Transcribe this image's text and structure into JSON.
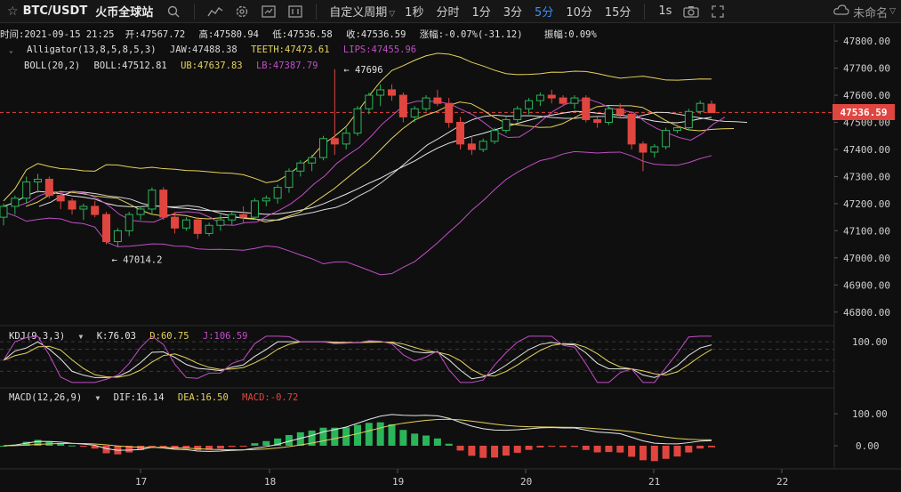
{
  "toolbar": {
    "symbol": "BTC/USDT",
    "exchange": "火币全球站",
    "custom_period": "自定义周期",
    "timeframes": [
      "1秒",
      "分时",
      "1分",
      "3分",
      "5分",
      "10分",
      "15分"
    ],
    "active_timeframe": "5分",
    "realtime": "1s",
    "user": "未命名",
    "icons": [
      "star-icon",
      "search-icon",
      "indicator-icon",
      "settings-icon",
      "fullscreen-icon",
      "camera-icon",
      "expand-icon",
      "cloud-icon"
    ]
  },
  "info_bar": {
    "time": "时间:2021-09-15 21:25",
    "open": "开:47567.72",
    "high": "高:47580.94",
    "low": "低:47536.58",
    "close": "收:47536.59",
    "change": "涨幅:-0.07%(-31.12)",
    "amplitude": "振幅:0.09%"
  },
  "alligator": {
    "label": "Alligator(13,8,5,8,5,3)",
    "jaw": "JAW:47488.38",
    "teeth": "TEETH:47473.61",
    "lips": "LIPS:47455.96"
  },
  "boll": {
    "label": "BOLL(20,2)",
    "mid": "BOLL:47512.81",
    "ub": "UB:47637.83",
    "lb": "LB:47387.79"
  },
  "kdj": {
    "label": "KDJ(9,3,3)",
    "k": "K:76.03",
    "d": "D:60.75",
    "j": "J:106.59"
  },
  "macd": {
    "label": "MACD(12,26,9)",
    "dif": "DIF:16.14",
    "dea": "DEA:16.50",
    "macd": "MACD:-0.72"
  },
  "current_price": "47536.59",
  "colors": {
    "up": "#2ab55a",
    "down": "#e0463f",
    "boll": "#e6d35a",
    "lips": "#c04ec7",
    "jaw": "#d9d9d9",
    "active": "#3d8ef5"
  },
  "chart_data": {
    "type": "candlestick",
    "price_axis_ticks": [
      "47800.00",
      "47700.00",
      "47600.00",
      "47500.00",
      "47400.00",
      "47300.00",
      "47200.00",
      "47100.00",
      "47000.00",
      "46900.00",
      "46800.00"
    ],
    "kdj_axis_ticks": [
      "100.00"
    ],
    "macd_axis_ticks": [
      "100.00",
      "0.00"
    ],
    "x_ticks": [
      "17",
      "18",
      "19",
      "20",
      "21",
      "22"
    ],
    "price_range": [
      46750,
      47820
    ],
    "annotations": {
      "high": "47696",
      "low": "47014.2"
    },
    "candles": [
      [
        47150,
        47200,
        47120,
        47190
      ],
      [
        47190,
        47230,
        47160,
        47220
      ],
      [
        47220,
        47300,
        47200,
        47280
      ],
      [
        47280,
        47310,
        47240,
        47290
      ],
      [
        47290,
        47300,
        47220,
        47230
      ],
      [
        47230,
        47240,
        47180,
        47210
      ],
      [
        47210,
        47220,
        47160,
        47180
      ],
      [
        47180,
        47200,
        47140,
        47190
      ],
      [
        47190,
        47210,
        47150,
        47160
      ],
      [
        47160,
        47170,
        47050,
        47060
      ],
      [
        47060,
        47110,
        47040,
        47100
      ],
      [
        47100,
        47170,
        47080,
        47160
      ],
      [
        47160,
        47190,
        47140,
        47180
      ],
      [
        47180,
        47260,
        47160,
        47250
      ],
      [
        47250,
        47260,
        47140,
        47150
      ],
      [
        47150,
        47170,
        47090,
        47110
      ],
      [
        47110,
        47150,
        47100,
        47140
      ],
      [
        47140,
        47150,
        47070,
        47090
      ],
      [
        47090,
        47130,
        47080,
        47120
      ],
      [
        47120,
        47160,
        47100,
        47140
      ],
      [
        47140,
        47170,
        47120,
        47160
      ],
      [
        47160,
        47190,
        47130,
        47150
      ],
      [
        47150,
        47220,
        47140,
        47210
      ],
      [
        47210,
        47230,
        47190,
        47220
      ],
      [
        47220,
        47270,
        47200,
        47260
      ],
      [
        47260,
        47330,
        47240,
        47320
      ],
      [
        47320,
        47360,
        47300,
        47350
      ],
      [
        47350,
        47380,
        47320,
        47370
      ],
      [
        47370,
        47450,
        47360,
        47440
      ],
      [
        47440,
        47696,
        47380,
        47420
      ],
      [
        47420,
        47480,
        47400,
        47460
      ],
      [
        47460,
        47560,
        47450,
        47550
      ],
      [
        47550,
        47610,
        47530,
        47600
      ],
      [
        47600,
        47640,
        47560,
        47620
      ],
      [
        47620,
        47640,
        47580,
        47600
      ],
      [
        47600,
        47610,
        47500,
        47520
      ],
      [
        47520,
        47560,
        47500,
        47550
      ],
      [
        47550,
        47600,
        47540,
        47590
      ],
      [
        47590,
        47620,
        47560,
        47570
      ],
      [
        47570,
        47590,
        47480,
        47500
      ],
      [
        47500,
        47520,
        47400,
        47420
      ],
      [
        47420,
        47450,
        47380,
        47400
      ],
      [
        47400,
        47440,
        47390,
        47430
      ],
      [
        47430,
        47480,
        47420,
        47470
      ],
      [
        47470,
        47520,
        47460,
        47510
      ],
      [
        47510,
        47560,
        47500,
        47550
      ],
      [
        47550,
        47590,
        47530,
        47580
      ],
      [
        47580,
        47610,
        47560,
        47600
      ],
      [
        47600,
        47620,
        47570,
        47590
      ],
      [
        47590,
        47600,
        47560,
        47570
      ],
      [
        47570,
        47600,
        47550,
        47590
      ],
      [
        47590,
        47600,
        47500,
        47510
      ],
      [
        47510,
        47520,
        47480,
        47500
      ],
      [
        47500,
        47560,
        47490,
        47550
      ],
      [
        47550,
        47570,
        47520,
        47530
      ],
      [
        47530,
        47540,
        47400,
        47420
      ],
      [
        47420,
        47430,
        47320,
        47390
      ],
      [
        47390,
        47420,
        47370,
        47410
      ],
      [
        47410,
        47480,
        47400,
        47470
      ],
      [
        47470,
        47490,
        47460,
        47480
      ],
      [
        47480,
        47550,
        47470,
        47540
      ],
      [
        47540,
        47580,
        47530,
        47570
      ],
      [
        47567,
        47581,
        47536,
        47536
      ]
    ]
  }
}
